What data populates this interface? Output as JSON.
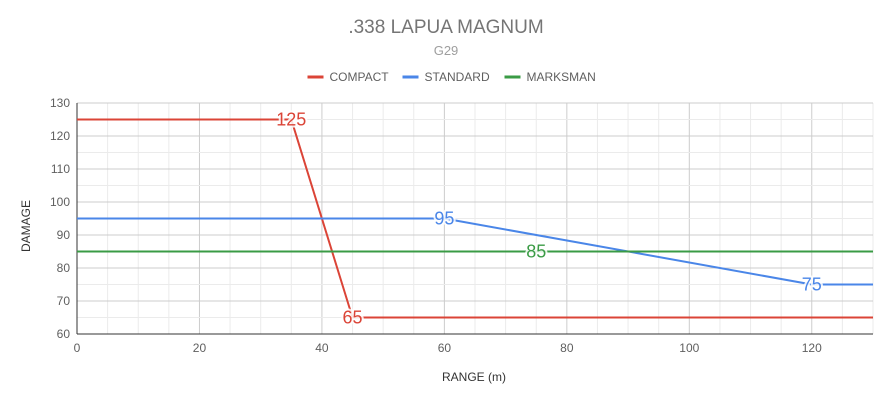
{
  "chart_data": {
    "type": "line",
    "title": ".338 LAPUA MAGNUM",
    "subtitle": "G29",
    "xlabel": "RANGE (m)",
    "ylabel": "DAMAGE",
    "xlim": [
      0,
      130
    ],
    "ylim": [
      60,
      130
    ],
    "xticks": [
      0,
      20,
      40,
      60,
      80,
      100,
      120
    ],
    "yticks": [
      60,
      70,
      80,
      90,
      100,
      110,
      120,
      130
    ],
    "grid": true,
    "legend_position": "top",
    "series": [
      {
        "name": "COMPACT",
        "color": "#db4437",
        "points": [
          [
            0,
            125
          ],
          [
            35,
            125
          ],
          [
            45,
            65
          ],
          [
            130,
            65
          ]
        ],
        "labels": [
          {
            "x": 35,
            "y": 125,
            "text": "125"
          },
          {
            "x": 45,
            "y": 65,
            "text": "65"
          }
        ]
      },
      {
        "name": "STANDARD",
        "color": "#4a86e8",
        "points": [
          [
            0,
            95
          ],
          [
            60,
            95
          ],
          [
            120,
            75
          ],
          [
            130,
            75
          ]
        ],
        "labels": [
          {
            "x": 60,
            "y": 95,
            "text": "95"
          },
          {
            "x": 120,
            "y": 75,
            "text": "75"
          }
        ]
      },
      {
        "name": "MARKSMAN",
        "color": "#3a9b45",
        "points": [
          [
            0,
            85
          ],
          [
            130,
            85
          ]
        ],
        "labels": [
          {
            "x": 75,
            "y": 85,
            "text": "85"
          }
        ]
      }
    ]
  }
}
